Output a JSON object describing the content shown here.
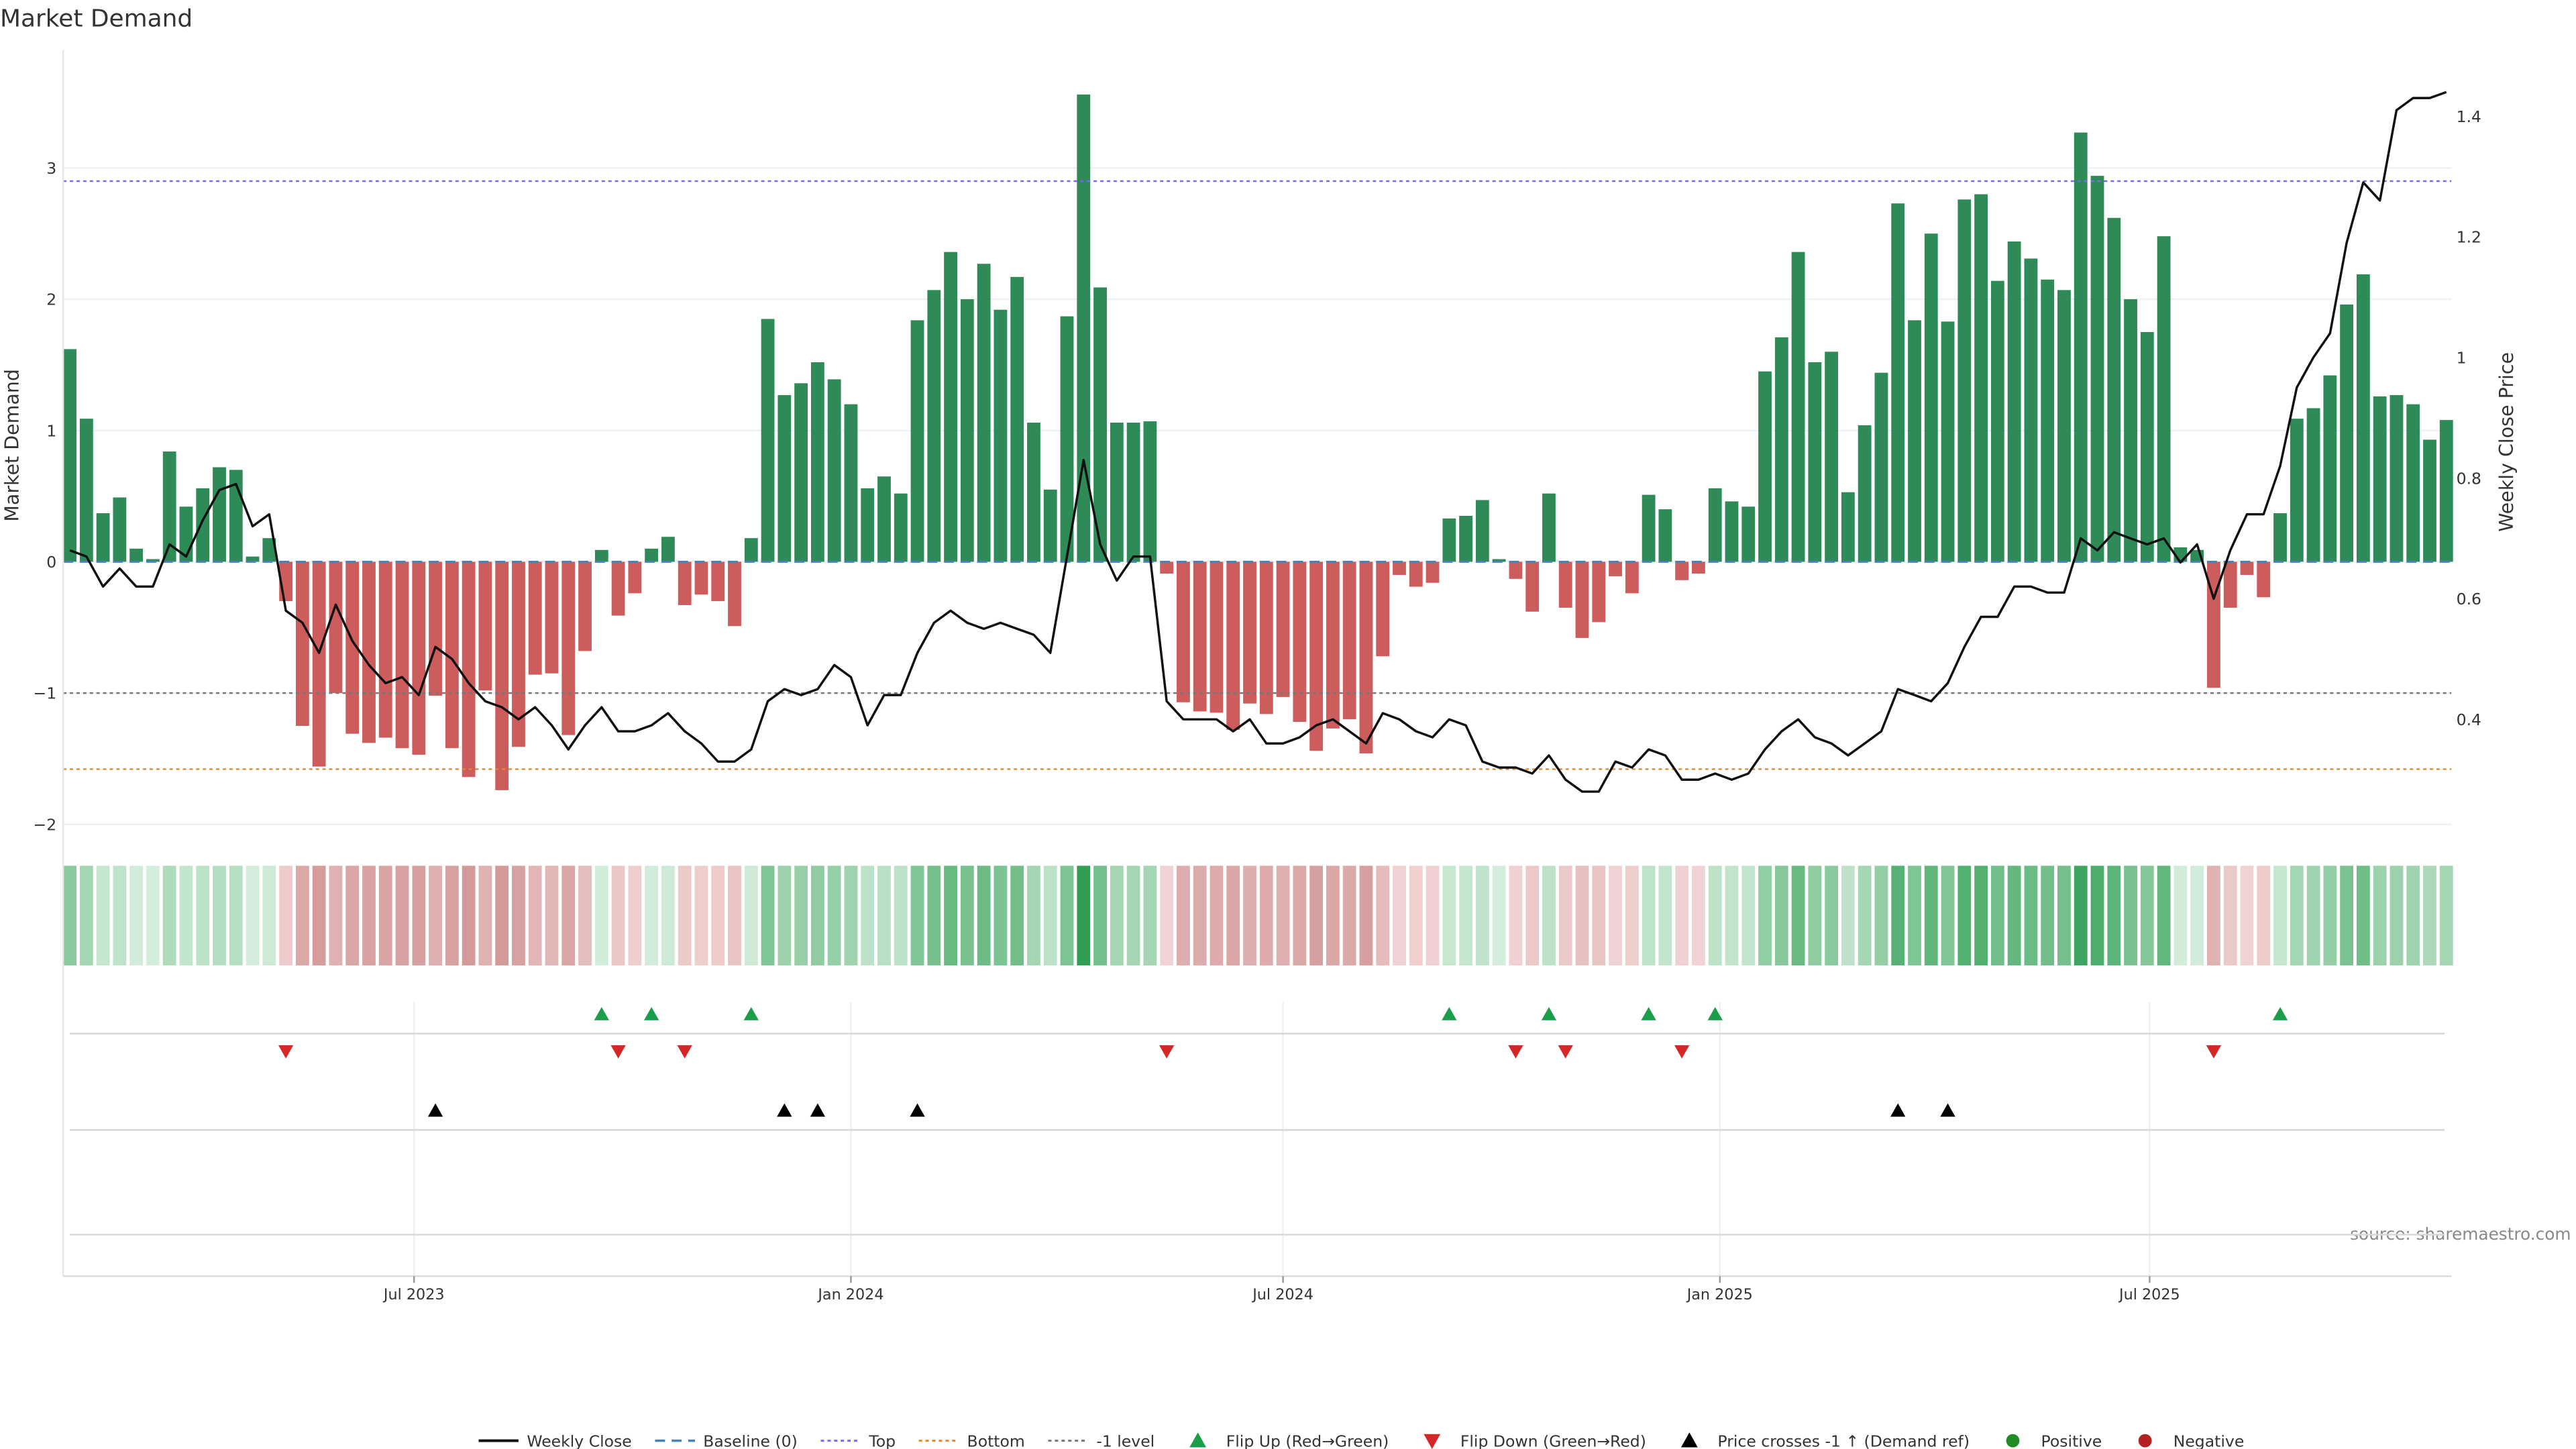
{
  "chart_data": {
    "type": "bar",
    "title": "Market Demand",
    "ylabel": "Market Demand",
    "y2label": "Weekly Close Price",
    "ylim": [
      -2.05,
      3.9
    ],
    "y2lim": [
      0.215,
      1.51
    ],
    "yticks": [
      "-2",
      "-1",
      "0",
      "1",
      "2",
      "3"
    ],
    "y2ticks": [
      "0.4",
      "0.6",
      "0.8",
      "1",
      "1.2",
      "1.4"
    ],
    "xticks": [
      {
        "label": "Jul 2023",
        "date": "2023-07-01"
      },
      {
        "label": "Jan 2024",
        "date": "2024-01-01"
      },
      {
        "label": "Jul 2024",
        "date": "2024-07-01"
      },
      {
        "label": "Jan 2025",
        "date": "2025-01-01"
      },
      {
        "label": "Jul 2025",
        "date": "2025-07-01"
      }
    ],
    "start_date": "2023-02-06",
    "frequency": "weekly",
    "levels": {
      "top": 2.9,
      "bottom": -1.58,
      "minus_one": -1,
      "baseline": 0
    },
    "demand": [
      1.62,
      1.09,
      0.37,
      0.49,
      0.1,
      0.02,
      0.84,
      0.42,
      0.56,
      0.72,
      0.7,
      0.04,
      0.18,
      -0.3,
      -1.25,
      -1.56,
      -1.0,
      -1.31,
      -1.38,
      -1.34,
      -1.42,
      -1.47,
      -1.02,
      -1.42,
      -1.64,
      -0.98,
      -1.74,
      -1.41,
      -0.86,
      -0.85,
      -1.32,
      -0.68,
      0.09,
      -0.41,
      -0.24,
      0.1,
      0.19,
      -0.33,
      -0.25,
      -0.3,
      -0.49,
      0.18,
      1.85,
      1.27,
      1.36,
      1.52,
      1.39,
      1.2,
      0.56,
      0.65,
      0.52,
      1.84,
      2.07,
      2.36,
      2.0,
      2.27,
      1.92,
      2.17,
      1.06,
      0.55,
      1.87,
      3.56,
      2.09,
      1.06,
      1.06,
      1.07,
      -0.09,
      -1.07,
      -1.14,
      -1.15,
      -1.28,
      -1.08,
      -1.16,
      -1.03,
      -1.22,
      -1.44,
      -1.27,
      -1.2,
      -1.46,
      -0.72,
      -0.1,
      -0.19,
      -0.16,
      0.33,
      0.35,
      0.47,
      0.02,
      -0.13,
      -0.38,
      0.52,
      -0.35,
      -0.58,
      -0.46,
      -0.11,
      -0.24,
      0.51,
      0.4,
      -0.14,
      -0.09,
      0.56,
      0.46,
      0.42,
      1.45,
      1.71,
      2.36,
      1.52,
      1.6,
      0.53,
      1.04,
      1.44,
      2.73,
      1.84,
      2.5,
      1.83,
      2.76,
      2.8,
      2.14,
      2.44,
      2.31,
      2.15,
      2.07,
      3.27,
      2.94,
      2.62,
      2.0,
      1.75,
      2.48,
      0.11,
      0.09,
      -0.96,
      -0.35,
      -0.1,
      -0.27,
      0.37,
      1.09,
      1.17,
      1.42,
      1.96,
      2.19,
      1.26,
      1.27,
      1.2,
      0.93,
      1.08
    ],
    "weekly_close": [
      0.68,
      0.67,
      0.62,
      0.65,
      0.62,
      0.62,
      0.69,
      0.67,
      0.73,
      0.78,
      0.79,
      0.72,
      0.74,
      0.58,
      0.56,
      0.51,
      0.59,
      0.53,
      0.49,
      0.46,
      0.47,
      0.44,
      0.52,
      0.5,
      0.46,
      0.43,
      0.42,
      0.4,
      0.42,
      0.39,
      0.35,
      0.39,
      0.42,
      0.38,
      0.38,
      0.39,
      0.41,
      0.38,
      0.36,
      0.33,
      0.33,
      0.35,
      0.43,
      0.45,
      0.44,
      0.45,
      0.49,
      0.47,
      0.39,
      0.44,
      0.44,
      0.51,
      0.56,
      0.58,
      0.56,
      0.55,
      0.56,
      0.55,
      0.54,
      0.51,
      0.67,
      0.83,
      0.69,
      0.63,
      0.67,
      0.67,
      0.43,
      0.4,
      0.4,
      0.4,
      0.38,
      0.4,
      0.36,
      0.36,
      0.37,
      0.39,
      0.4,
      0.38,
      0.36,
      0.41,
      0.4,
      0.38,
      0.37,
      0.4,
      0.39,
      0.33,
      0.32,
      0.32,
      0.31,
      0.34,
      0.3,
      0.28,
      0.28,
      0.33,
      0.32,
      0.35,
      0.34,
      0.3,
      0.3,
      0.31,
      0.3,
      0.31,
      0.35,
      0.38,
      0.4,
      0.37,
      0.36,
      0.34,
      0.36,
      0.38,
      0.45,
      0.44,
      0.43,
      0.46,
      0.52,
      0.57,
      0.57,
      0.62,
      0.62,
      0.61,
      0.61,
      0.7,
      0.68,
      0.71,
      0.7,
      0.69,
      0.7,
      0.66,
      0.69,
      0.6,
      0.68,
      0.74,
      0.74,
      0.82,
      0.95,
      1.0,
      1.04,
      1.19,
      1.29,
      1.26,
      1.41,
      1.43,
      1.43,
      1.44
    ],
    "flip_up_weeks": [
      32,
      35,
      41,
      83,
      89,
      95,
      99,
      133
    ],
    "flip_down_weeks": [
      13,
      33,
      37,
      66,
      87,
      90,
      97,
      129
    ],
    "price_cross_weeks": [
      22,
      43,
      45,
      51,
      110,
      113
    ],
    "legend": [
      {
        "label": "Weekly Close",
        "kind": "line",
        "color": "#111111"
      },
      {
        "label": "Baseline (0)",
        "kind": "dash",
        "color": "#4682b4"
      },
      {
        "label": "Top",
        "kind": "dot",
        "color": "#7b68ee"
      },
      {
        "label": "Bottom",
        "kind": "dot",
        "color": "#e08a2c"
      },
      {
        "label": "-1 level",
        "kind": "dot",
        "color": "#777777"
      },
      {
        "label": "Flip Up (Red→Green)",
        "kind": "tri-up",
        "color": "#1a9e4a"
      },
      {
        "label": "Flip Down (Green→Red)",
        "kind": "tri-down",
        "color": "#d62728"
      },
      {
        "label": "Price crosses -1 ↑ (Demand ref)",
        "kind": "tri-up",
        "color": "#000000"
      },
      {
        "label": "Positive",
        "kind": "dot-c",
        "color": "#228b22"
      },
      {
        "label": "Negative",
        "kind": "dot-c",
        "color": "#b22222"
      }
    ],
    "legend_placement": "bottom",
    "source": "source: sharemaestro.com"
  },
  "colors": {
    "positive": "#2e8b57",
    "negative": "#cd5c5c"
  }
}
